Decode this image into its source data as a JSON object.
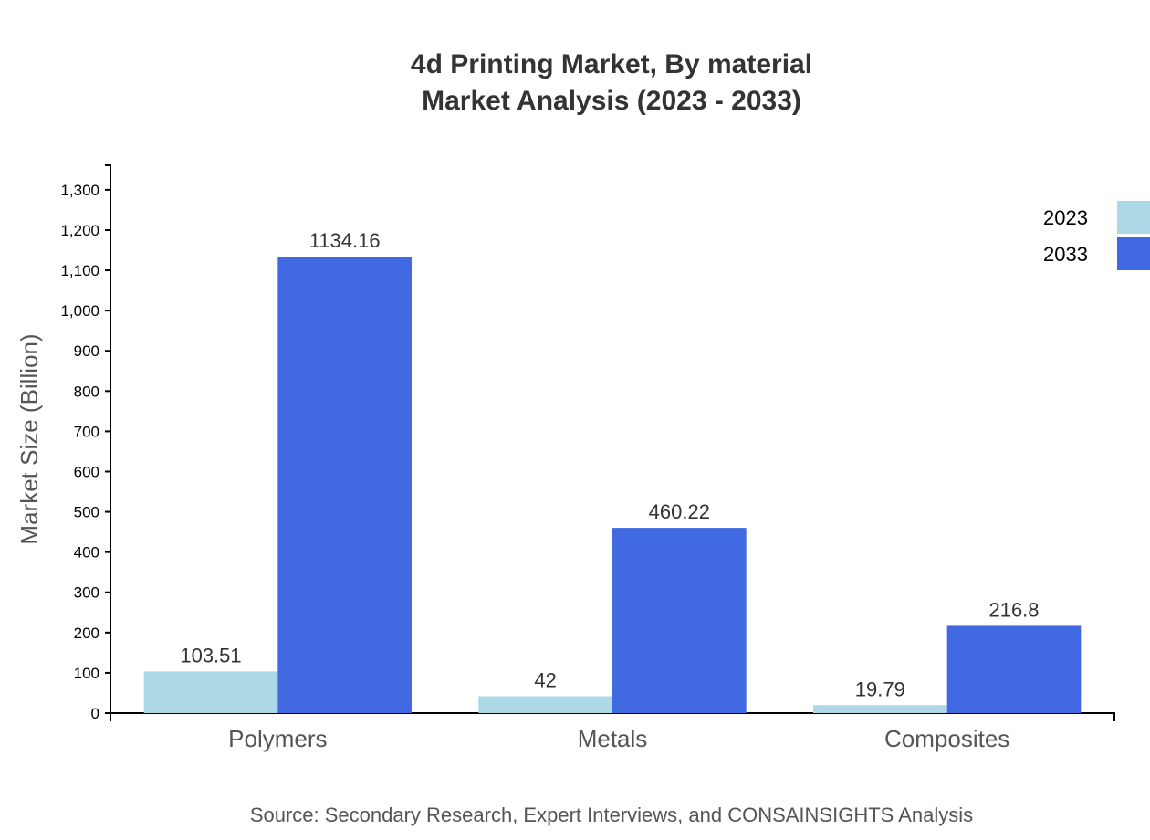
{
  "chart_data": {
    "type": "bar",
    "title": [
      "4d Printing Market, By material",
      "Market Analysis (2023 - 2033)"
    ],
    "ylabel": "Market Size (Billion)",
    "xlabel": "",
    "categories": [
      "Polymers",
      "Metals",
      "Composites"
    ],
    "series": [
      {
        "name": "2023",
        "values": [
          103.51,
          42,
          19.79
        ],
        "color": "#add8e6"
      },
      {
        "name": "2033",
        "values": [
          1134.16,
          460.22,
          216.8
        ],
        "color": "#4169e1"
      }
    ],
    "ylim": [
      0,
      1361
    ],
    "yticks": [
      0,
      100,
      200,
      300,
      400,
      500,
      600,
      700,
      800,
      900,
      1000,
      1100,
      1200,
      1300
    ],
    "grid": false,
    "legend": "top-right",
    "source": "Source: Secondary Research, Expert Interviews, and CONSAINSIGHTS Analysis"
  }
}
